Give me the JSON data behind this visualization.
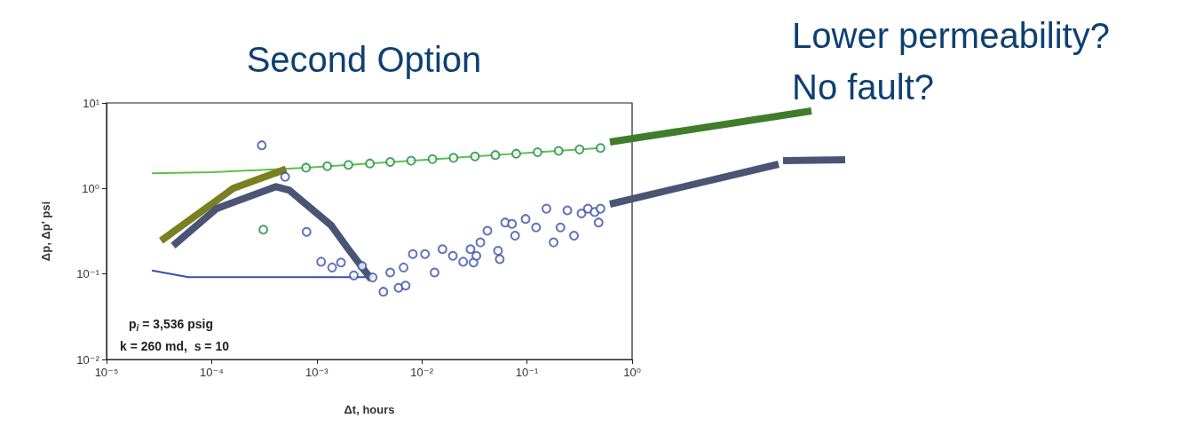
{
  "chart_data": {
    "type": "scatter",
    "title": "Second Option",
    "xlabel": "Δt, hours",
    "ylabel": "Δp, Δp' psi",
    "annotations": [
      "p$_{i}$ = 3,536 psig",
      "k = 260 md,  s = 10",
      "Lower permeability?",
      "No fault?"
    ],
    "log": "xy",
    "grid": false,
    "marker": "circle",
    "xlim": [
      1e-05,
      1
    ],
    "ylim": [
      0.01,
      10
    ],
    "xticks": [
      {
        "value": 1e-05,
        "label": "10⁻⁵"
      },
      {
        "value": 0.0001,
        "label": "10⁻⁴"
      },
      {
        "value": 0.001,
        "label": "10⁻³"
      },
      {
        "value": 0.01,
        "label": "10⁻²"
      },
      {
        "value": 0.1,
        "label": "10⁻¹"
      },
      {
        "value": 1,
        "label": "10⁰"
      }
    ],
    "yticks": [
      {
        "value": 0.01,
        "label": "10⁻²"
      },
      {
        "value": 0.1,
        "label": "10⁻¹"
      },
      {
        "value": 1,
        "label": "10⁰"
      },
      {
        "value": 10,
        "label": "10¹"
      }
    ],
    "series": [
      {
        "color": "#1e8a45",
        "x": [
          0.00031,
          0.00079,
          0.00126,
          0.002,
          0.0032,
          0.005,
          0.0079,
          0.0126,
          0.02,
          0.032,
          0.05,
          0.079,
          0.126,
          0.2,
          0.316,
          0.5
        ],
        "values": [
          0.33,
          1.75,
          1.82,
          1.89,
          1.96,
          2.04,
          2.11,
          2.2,
          2.28,
          2.37,
          2.46,
          2.55,
          2.65,
          2.75,
          2.86,
          2.97
        ]
      },
      {
        "color": "#3a4fa8",
        "x": [
          0.0003,
          0.0005,
          0.0008,
          0.0011,
          0.0014,
          0.0017,
          0.00225,
          0.0027,
          0.0034,
          0.0043,
          0.005,
          0.006,
          0.0067,
          0.007,
          0.0082,
          0.0107,
          0.0132,
          0.0157,
          0.0197,
          0.0247,
          0.029,
          0.031,
          0.033,
          0.036,
          0.042,
          0.053,
          0.055,
          0.062,
          0.072,
          0.077,
          0.097,
          0.122,
          0.153,
          0.179,
          0.208,
          0.242,
          0.28,
          0.33,
          0.38,
          0.44,
          0.48,
          0.5
        ],
        "values": [
          3.2,
          1.37,
          0.31,
          0.139,
          0.119,
          0.136,
          0.096,
          0.124,
          0.091,
          0.062,
          0.104,
          0.069,
          0.119,
          0.073,
          0.171,
          0.171,
          0.104,
          0.195,
          0.163,
          0.139,
          0.195,
          0.136,
          0.163,
          0.234,
          0.32,
          0.187,
          0.149,
          0.4,
          0.385,
          0.28,
          0.44,
          0.35,
          0.58,
          0.234,
          0.35,
          0.555,
          0.28,
          0.51,
          0.58,
          0.53,
          0.4,
          0.58
        ]
      },
      {
        "type": "line",
        "marker": "none",
        "color": "#5cc24a",
        "x": [
          2.7e-05,
          0.0001,
          0.0003,
          0.00079,
          0.5
        ],
        "values": [
          1.5,
          1.55,
          1.65,
          1.75,
          2.97
        ]
      },
      {
        "type": "line",
        "marker": "none",
        "color": "#3a4fa8",
        "x": [
          2.7e-05,
          6e-05,
          0.0032
        ],
        "values": [
          0.11,
          0.092,
          0.092
        ]
      },
      {
        "type": "line",
        "marker": "none",
        "color": "#7a7f22",
        "x": [
          3.3e-05,
          0.00016,
          0.00051
        ],
        "values": [
          0.245,
          1.0,
          1.69
        ]
      },
      {
        "type": "line",
        "marker": "none",
        "color": "#4a5575",
        "x": [
          4.3e-05,
          0.000111,
          0.00041,
          0.00055,
          0.00137,
          0.002,
          0.0033
        ],
        "values": [
          0.214,
          0.58,
          1.05,
          0.95,
          0.37,
          0.195,
          0.0865
        ]
      }
    ]
  }
}
